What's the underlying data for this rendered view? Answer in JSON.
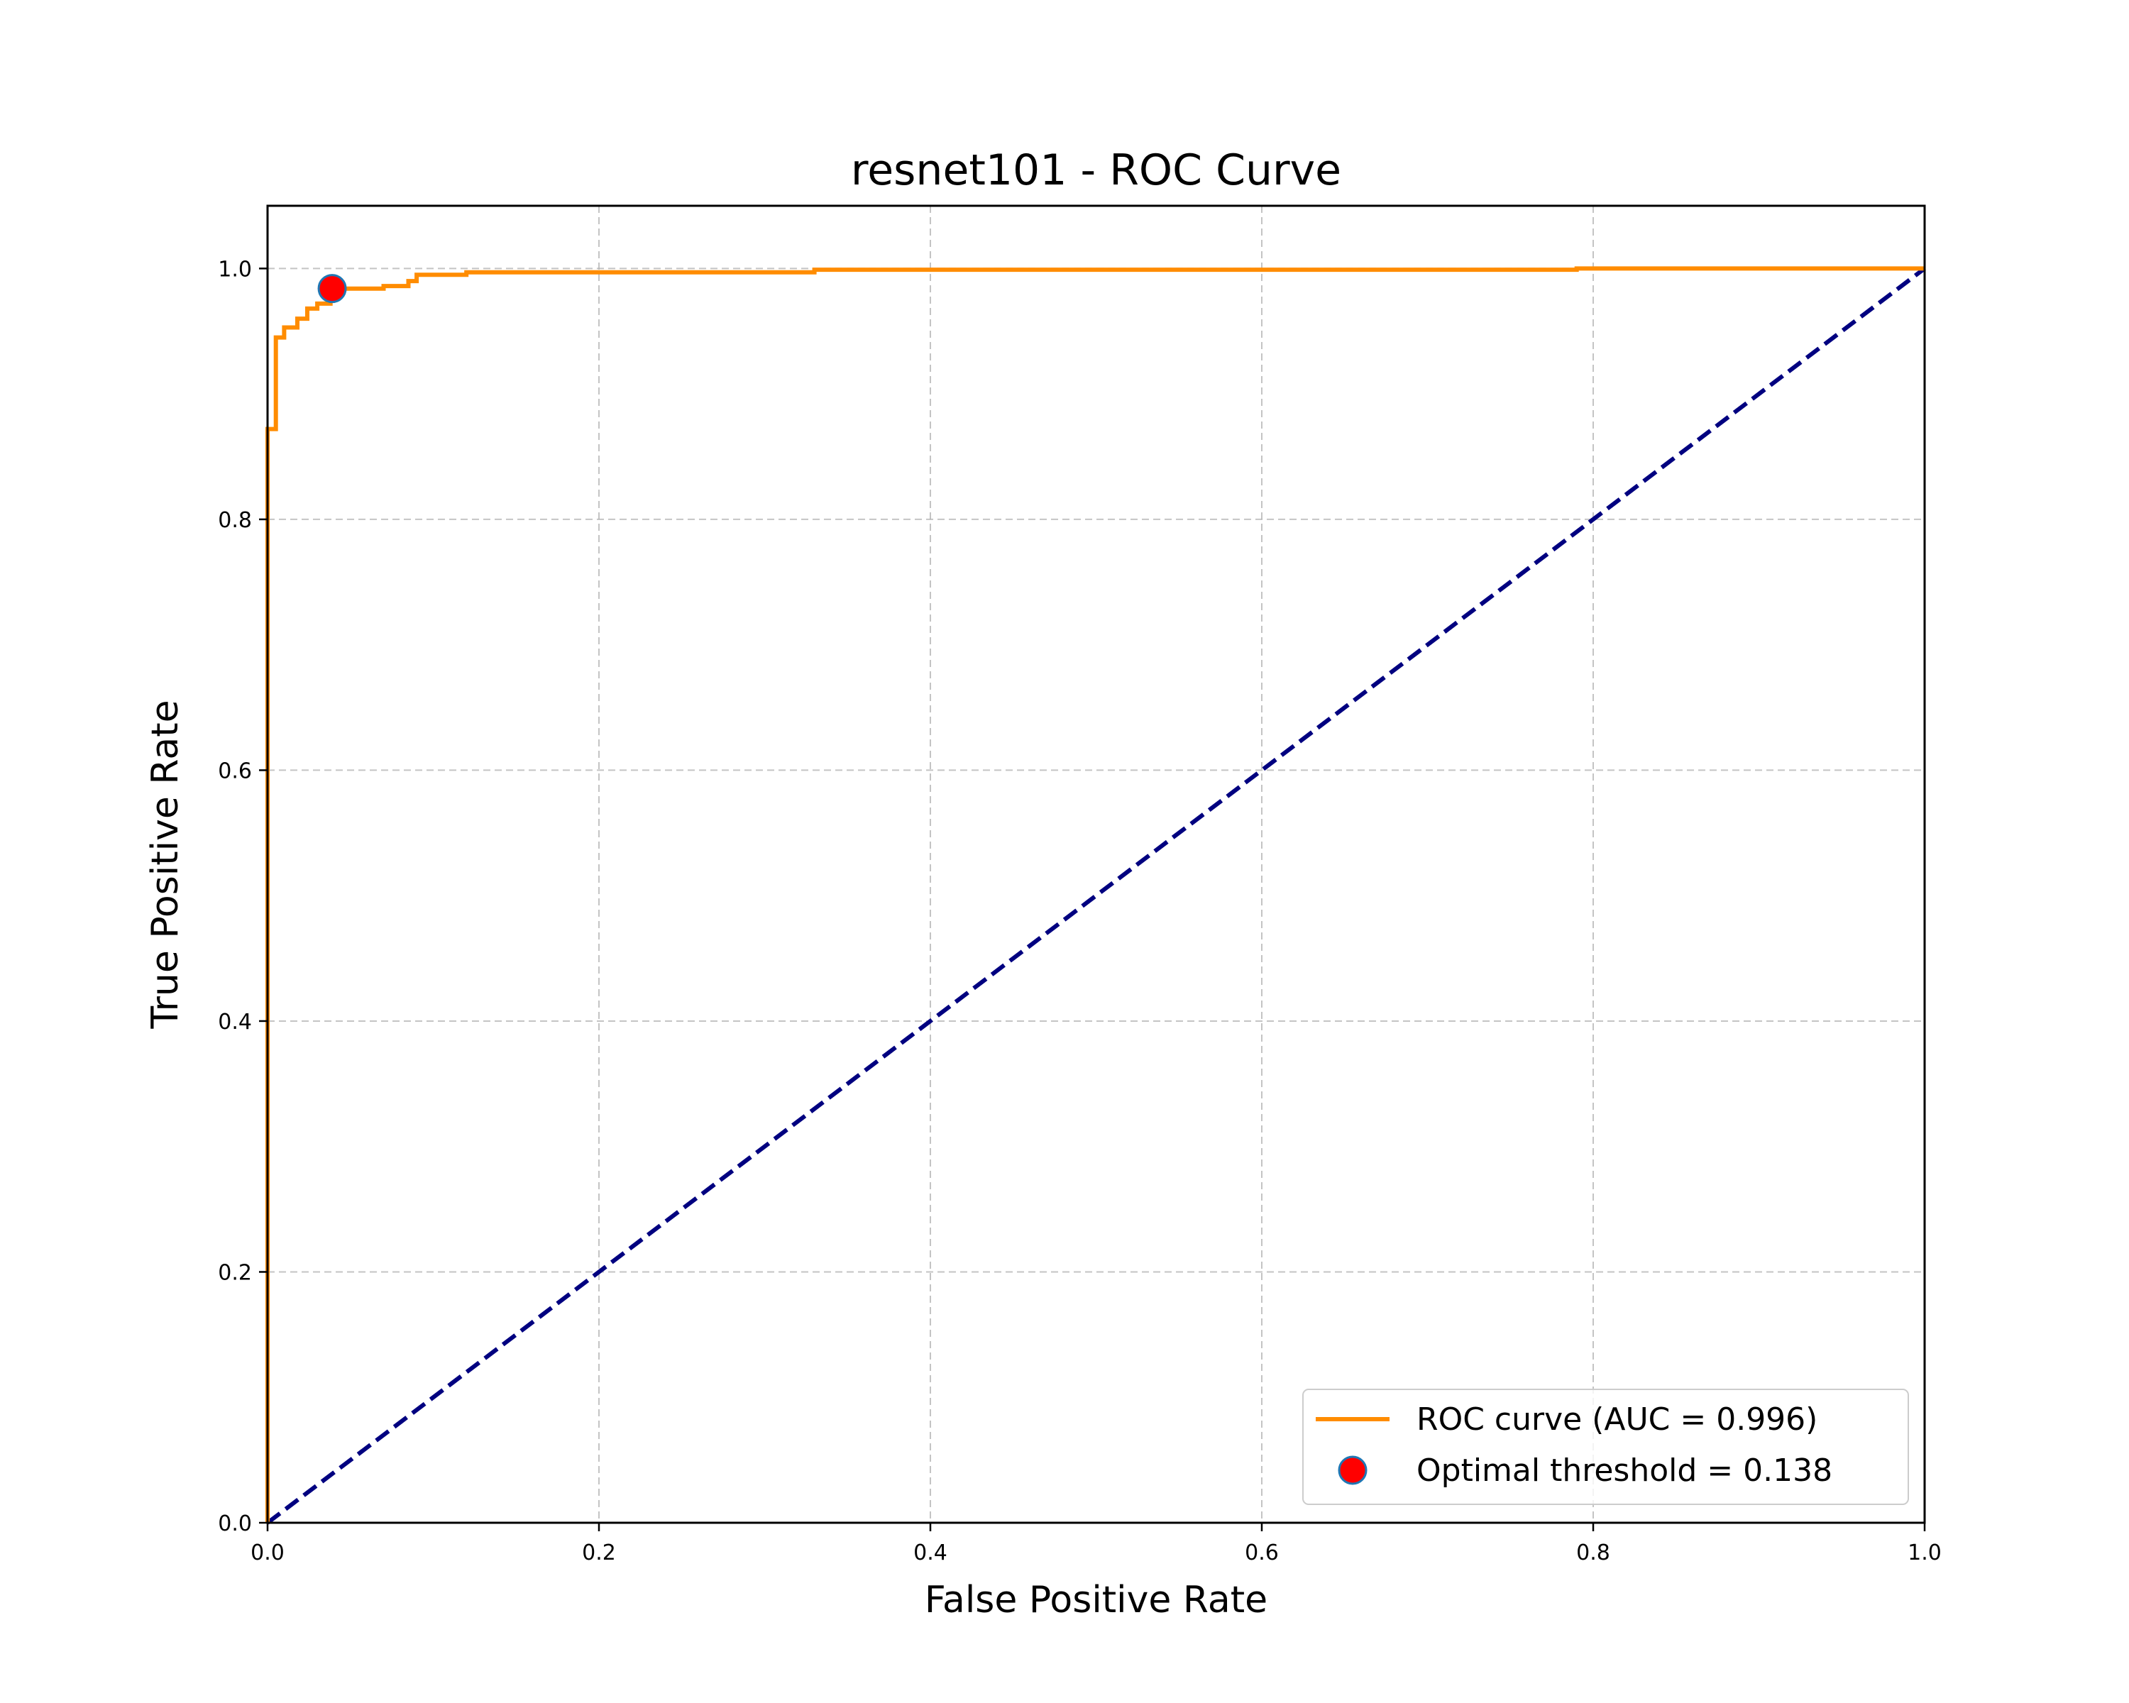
{
  "chart_data": {
    "type": "line",
    "title": "resnet101 - ROC Curve",
    "xlabel": "False Positive Rate",
    "ylabel": "True Positive Rate",
    "xlim": [
      0.0,
      1.0
    ],
    "ylim": [
      0.0,
      1.05
    ],
    "grid": true,
    "grid_style": "dashed",
    "legend_position": "lower right",
    "xticks": [
      0.0,
      0.2,
      0.4,
      0.6,
      0.8,
      1.0
    ],
    "xtick_labels": [
      "0.0",
      "0.2",
      "0.4",
      "0.6",
      "0.8",
      "1.0"
    ],
    "yticks": [
      0.0,
      0.2,
      0.4,
      0.6,
      0.8,
      1.0
    ],
    "ytick_labels": [
      "0.0",
      "0.2",
      "0.4",
      "0.6",
      "0.8",
      "1.0"
    ],
    "series": [
      {
        "name": "ROC curve (AUC = 0.996)",
        "kind": "step-line",
        "color": "#ff8c00",
        "x": [
          0.0,
          0.0,
          0.005,
          0.005,
          0.01,
          0.01,
          0.018,
          0.018,
          0.024,
          0.024,
          0.03,
          0.03,
          0.038,
          0.038,
          0.07,
          0.07,
          0.085,
          0.085,
          0.09,
          0.09,
          0.12,
          0.12,
          0.33,
          0.33,
          0.79,
          0.79,
          1.0
        ],
        "y": [
          0.0,
          0.872,
          0.872,
          0.945,
          0.945,
          0.953,
          0.953,
          0.96,
          0.96,
          0.968,
          0.968,
          0.972,
          0.972,
          0.984,
          0.984,
          0.986,
          0.986,
          0.99,
          0.99,
          0.995,
          0.995,
          0.997,
          0.997,
          0.999,
          0.999,
          1.0,
          1.0
        ]
      },
      {
        "name": "",
        "kind": "diagonal",
        "color": "#000080",
        "x": [
          0.0,
          1.0
        ],
        "y": [
          0.0,
          1.0
        ]
      },
      {
        "name": "Optimal threshold = 0.138",
        "kind": "point",
        "color": "#ff0000",
        "edge_color": "#1f77b4",
        "x": [
          0.039
        ],
        "y": [
          0.984
        ]
      }
    ]
  }
}
